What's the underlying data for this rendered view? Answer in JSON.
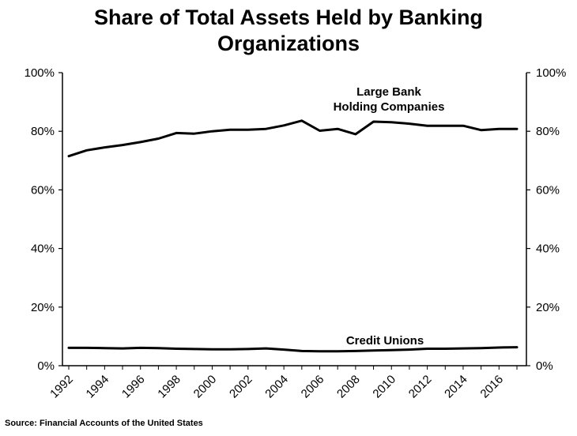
{
  "chart_data": {
    "type": "line",
    "title_lines": [
      "Share of Total Assets Held by Banking",
      "Organizations"
    ],
    "xlabel": "",
    "ylabel": "",
    "x_ticks": [
      "1992",
      "1994",
      "1996",
      "1998",
      "2000",
      "2002",
      "2004",
      "2006",
      "2008",
      "2010",
      "2012",
      "2014",
      "2016"
    ],
    "y_ticks": [
      "0%",
      "20%",
      "40%",
      "60%",
      "80%",
      "100%"
    ],
    "ylim": [
      0,
      100
    ],
    "xlim": [
      1992,
      2017
    ],
    "grid": false,
    "secondary_y_axis": true,
    "x": [
      1992,
      1993,
      1994,
      1995,
      1996,
      1997,
      1998,
      1999,
      2000,
      2001,
      2002,
      2003,
      2004,
      2005,
      2006,
      2007,
      2008,
      2009,
      2010,
      2011,
      2012,
      2013,
      2014,
      2015,
      2016,
      2017
    ],
    "series": [
      {
        "name": "Large Bank Holding Companies",
        "label_lines": [
          "Large Bank",
          "Holding Companies"
        ],
        "color": "#000000",
        "values": [
          71.5,
          73.5,
          74.5,
          75.3,
          76.3,
          77.5,
          79.4,
          79.2,
          80.0,
          80.5,
          80.5,
          80.8,
          82.0,
          83.6,
          80.2,
          80.8,
          79.0,
          83.3,
          83.1,
          82.6,
          81.9,
          81.9,
          81.9,
          80.4,
          80.8,
          80.8
        ]
      },
      {
        "name": "Credit Unions",
        "label_lines": [
          "Credit Unions"
        ],
        "color": "#000000",
        "values": [
          6.1,
          6.1,
          6.0,
          5.9,
          6.1,
          6.0,
          5.8,
          5.7,
          5.6,
          5.6,
          5.7,
          5.9,
          5.5,
          5.0,
          4.9,
          4.9,
          5.0,
          5.2,
          5.3,
          5.5,
          5.8,
          5.8,
          5.9,
          6.0,
          6.2,
          6.3
        ]
      }
    ]
  },
  "source": "Source: Financial Accounts of the United States"
}
